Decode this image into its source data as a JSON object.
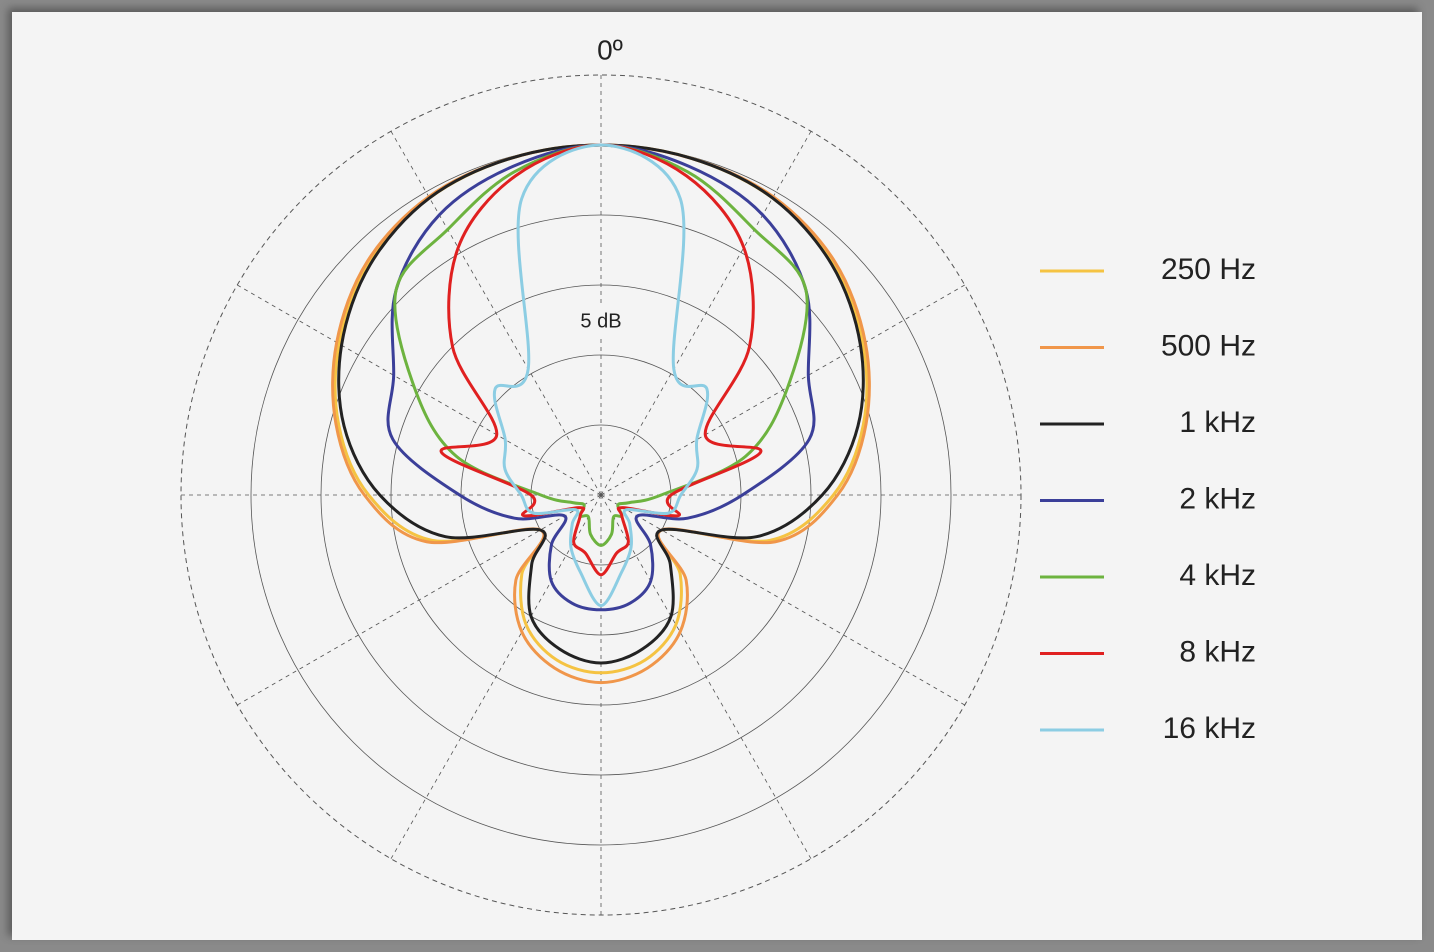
{
  "chart_data": {
    "type": "polar",
    "angle_label": "0º",
    "annotation": "5 dB",
    "theta": [
      0,
      15,
      30,
      45,
      60,
      75,
      90,
      105,
      120,
      135,
      150,
      165,
      180,
      195,
      210,
      225,
      240,
      255,
      270,
      285,
      300,
      315,
      330,
      345
    ],
    "rlim": [
      -25,
      5
    ],
    "rticks": [
      -20,
      -15,
      -10,
      -5,
      0
    ],
    "thetaticks": [
      0,
      30,
      60,
      90,
      120,
      150,
      180,
      210,
      240,
      270,
      300,
      330
    ],
    "series": [
      {
        "name": "250 Hz",
        "color": "#f5c342",
        "values": [
          0,
          -0.1,
          -0.5,
          -1.5,
          -3.4,
          -5.6,
          -8.4,
          -12.5,
          -20,
          -17,
          -14.3,
          -12.8,
          -12.3,
          -12.8,
          -14.3,
          -17,
          -20,
          -12.5,
          -8.4,
          -5.6,
          -3.4,
          -1.5,
          -0.5,
          -0.1
        ]
      },
      {
        "name": "500 Hz",
        "color": "#f0964a",
        "values": [
          0,
          -0.1,
          -0.4,
          -1.4,
          -3.2,
          -5.4,
          -8.1,
          -12.1,
          -20,
          -16.4,
          -13.7,
          -12.2,
          -11.6,
          -12.2,
          -13.7,
          -16.4,
          -20,
          -12.1,
          -8.1,
          -5.4,
          -3.2,
          -1.4,
          -0.4,
          -0.1
        ]
      },
      {
        "name": "1 kHz",
        "color": "#222222",
        "values": [
          0,
          -0.1,
          -0.5,
          -1.7,
          -3.6,
          -6,
          -9.2,
          -13.5,
          -20,
          -18,
          -15,
          -13.6,
          -13,
          -13.6,
          -15,
          -18,
          -20,
          -13.5,
          -9.2,
          -6,
          -3.6,
          -1.7,
          -0.5,
          -0.1
        ]
      },
      {
        "name": "2 kHz",
        "color": "#3b3f99",
        "values": [
          0,
          -0.7,
          -1.9,
          -4.3,
          -7.9,
          -9.6,
          -14.9,
          -18.6,
          -22,
          -20,
          -17.9,
          -17,
          -16.8,
          -17,
          -17.9,
          -20,
          -22,
          -18.6,
          -14.9,
          -9.6,
          -7.9,
          -4.3,
          -1.9,
          -0.7
        ]
      },
      {
        "name": "4 kHz",
        "color": "#6db33f",
        "values": [
          0,
          -1.1,
          -3.1,
          -4.3,
          -9.6,
          -14.3,
          -20.7,
          -22.9,
          -23.6,
          -22.9,
          -23.2,
          -22.1,
          -21.4,
          -22.1,
          -23.2,
          -22.9,
          -23.6,
          -22.9,
          -20.7,
          -14.3,
          -9.6,
          -4.3,
          -3.1,
          -1.1
        ]
      },
      {
        "name": "8 kHz",
        "color": "#e02020",
        "values": [
          0,
          -1.4,
          -4.6,
          -10,
          -16.4,
          -13.2,
          -20,
          -19.3,
          -23.2,
          -22.9,
          -21.1,
          -20.7,
          -19.3,
          -20.7,
          -21.1,
          -22.9,
          -23.2,
          -19.3,
          -20,
          -13.2,
          -16.4,
          -10,
          -4.6,
          -1.4
        ]
      },
      {
        "name": "16 kHz",
        "color": "#8ccde3",
        "values": [
          0,
          -3.1,
          -14.6,
          -14.3,
          -17.1,
          -17.9,
          -19.3,
          -20,
          -22.9,
          -22.1,
          -20.7,
          -19.3,
          -17.1,
          -19.3,
          -20.7,
          -22.1,
          -22.9,
          -20,
          -19.3,
          -17.9,
          -17.1,
          -14.3,
          -14.6,
          -3.1
        ]
      }
    ]
  }
}
